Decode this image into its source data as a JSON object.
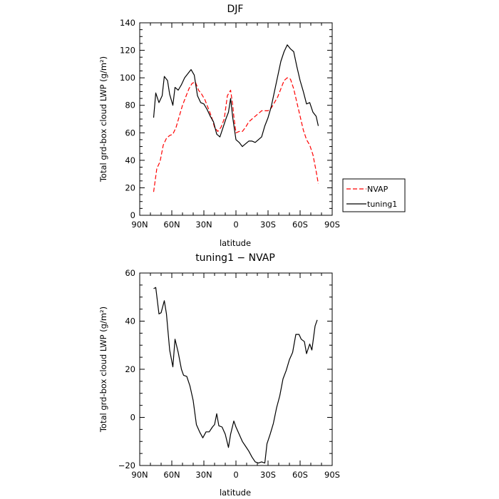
{
  "chart_data": [
    {
      "type": "line",
      "title": "DJF",
      "xlabel": "latitude",
      "ylabel": "Total grd-box cloud LWP (g/m²)",
      "xlim": [
        90,
        -90
      ],
      "ylim": [
        0,
        140
      ],
      "xticks": [
        90,
        60,
        30,
        0,
        -30,
        -60,
        -90
      ],
      "xtick_labels": [
        "90N",
        "60N",
        "30N",
        "0",
        "30S",
        "60S",
        "90S"
      ],
      "yticks": [
        0,
        20,
        40,
        60,
        80,
        100,
        120,
        140
      ],
      "ytick_labels": [
        "0",
        "20",
        "40",
        "60",
        "80",
        "100",
        "120",
        "140"
      ],
      "legend": "outside-right",
      "series": [
        {
          "name": "NVAP",
          "color": "#ff0000",
          "dash": "dashed",
          "points": [
            [
              77,
              17
            ],
            [
              74,
              34
            ],
            [
              71,
              39
            ],
            [
              68,
              51
            ],
            [
              65,
              56
            ],
            [
              62,
              58
            ],
            [
              59,
              59
            ],
            [
              56,
              64
            ],
            [
              53,
              72
            ],
            [
              50,
              80
            ],
            [
              47,
              86
            ],
            [
              44,
              92
            ],
            [
              41,
              96
            ],
            [
              38,
              97
            ],
            [
              35,
              91
            ],
            [
              32,
              88
            ],
            [
              29,
              84
            ],
            [
              26,
              78
            ],
            [
              23,
              72
            ],
            [
              20,
              64
            ],
            [
              17,
              61
            ],
            [
              14,
              64
            ],
            [
              11,
              70
            ],
            [
              8,
              87
            ],
            [
              5,
              91
            ],
            [
              3,
              80
            ],
            [
              2,
              72
            ],
            [
              0,
              60
            ],
            [
              -3,
              61
            ],
            [
              -6,
              61
            ],
            [
              -9,
              64
            ],
            [
              -12,
              68
            ],
            [
              -15,
              70
            ],
            [
              -18,
              72
            ],
            [
              -21,
              74
            ],
            [
              -24,
              76
            ],
            [
              -27,
              76
            ],
            [
              -30,
              76
            ],
            [
              -33,
              78
            ],
            [
              -36,
              82
            ],
            [
              -39,
              86
            ],
            [
              -42,
              92
            ],
            [
              -45,
              98
            ],
            [
              -48,
              100
            ],
            [
              -51,
              99
            ],
            [
              -54,
              92
            ],
            [
              -57,
              82
            ],
            [
              -60,
              72
            ],
            [
              -63,
              62
            ],
            [
              -66,
              55
            ],
            [
              -69,
              51
            ],
            [
              -72,
              44
            ],
            [
              -75,
              32
            ],
            [
              -77,
              23
            ]
          ]
        },
        {
          "name": "tuning1",
          "color": "#000000",
          "dash": "solid",
          "points": [
            [
              77,
              71
            ],
            [
              75,
              89
            ],
            [
              72,
              82
            ],
            [
              69,
              87
            ],
            [
              67,
              101
            ],
            [
              64,
              98
            ],
            [
              62,
              88
            ],
            [
              59,
              80
            ],
            [
              57,
              93
            ],
            [
              54,
              91
            ],
            [
              51,
              95
            ],
            [
              48,
              100
            ],
            [
              45,
              103
            ],
            [
              42,
              106
            ],
            [
              39,
              102
            ],
            [
              36,
              87
            ],
            [
              33,
              82
            ],
            [
              30,
              81
            ],
            [
              27,
              77
            ],
            [
              24,
              72
            ],
            [
              21,
              68
            ],
            [
              18,
              59
            ],
            [
              15,
              57
            ],
            [
              12,
              64
            ],
            [
              9,
              71
            ],
            [
              7,
              75
            ],
            [
              5,
              85
            ],
            [
              3,
              71
            ],
            [
              0,
              55
            ],
            [
              -3,
              53
            ],
            [
              -6,
              50
            ],
            [
              -9,
              52
            ],
            [
              -12,
              54
            ],
            [
              -15,
              54
            ],
            [
              -18,
              53
            ],
            [
              -21,
              55
            ],
            [
              -24,
              57
            ],
            [
              -27,
              65
            ],
            [
              -30,
              71
            ],
            [
              -33,
              79
            ],
            [
              -36,
              90
            ],
            [
              -39,
              101
            ],
            [
              -42,
              112
            ],
            [
              -45,
              119
            ],
            [
              -48,
              124
            ],
            [
              -51,
              121
            ],
            [
              -54,
              119
            ],
            [
              -57,
              108
            ],
            [
              -60,
              98
            ],
            [
              -63,
              90
            ],
            [
              -66,
              81
            ],
            [
              -69,
              82
            ],
            [
              -72,
              75
            ],
            [
              -75,
              72
            ],
            [
              -77,
              65
            ]
          ]
        }
      ]
    },
    {
      "type": "line",
      "title": "tuning1 − NVAP",
      "xlabel": "latitude",
      "ylabel": "Total grd-box cloud LWP (g/m²)",
      "xlim": [
        90,
        -90
      ],
      "ylim": [
        -20,
        60
      ],
      "xticks": [
        90,
        60,
        30,
        0,
        -30,
        -60,
        -90
      ],
      "xtick_labels": [
        "90N",
        "60N",
        "30N",
        "0",
        "30S",
        "60S",
        "90S"
      ],
      "yticks": [
        -20,
        0,
        20,
        40,
        60
      ],
      "ytick_labels": [
        "−20",
        "0",
        "20",
        "40",
        "60"
      ],
      "series": [
        {
          "color": "#000000",
          "dash": "solid",
          "points": [
            [
              77,
              53.5
            ],
            [
              75,
              54
            ],
            [
              72,
              43
            ],
            [
              70,
              43.5
            ],
            [
              67,
              48.5
            ],
            [
              65,
              43
            ],
            [
              62,
              28
            ],
            [
              59,
              21
            ],
            [
              57,
              32.5
            ],
            [
              54,
              27
            ],
            [
              51,
              20
            ],
            [
              49,
              17.5
            ],
            [
              46,
              17
            ],
            [
              43,
              13
            ],
            [
              40,
              7
            ],
            [
              37,
              -3
            ],
            [
              34,
              -6
            ],
            [
              31,
              -8.5
            ],
            [
              28,
              -6
            ],
            [
              25,
              -6
            ],
            [
              22,
              -4
            ],
            [
              20,
              -3
            ],
            [
              18,
              1.5
            ],
            [
              16,
              -3.5
            ],
            [
              13,
              -4
            ],
            [
              10,
              -7
            ],
            [
              7,
              -12.5
            ],
            [
              5,
              -7
            ],
            [
              2,
              -1.5
            ],
            [
              0,
              -4
            ],
            [
              -3,
              -7
            ],
            [
              -6,
              -10
            ],
            [
              -9,
              -12
            ],
            [
              -12,
              -14
            ],
            [
              -15,
              -16.5
            ],
            [
              -18,
              -18.5
            ],
            [
              -21,
              -19
            ],
            [
              -24,
              -18.5
            ],
            [
              -27,
              -19
            ],
            [
              -29,
              -11
            ],
            [
              -32,
              -7
            ],
            [
              -35,
              -2.5
            ],
            [
              -38,
              4
            ],
            [
              -41,
              9
            ],
            [
              -44,
              16
            ],
            [
              -47,
              19.5
            ],
            [
              -50,
              24
            ],
            [
              -53,
              27
            ],
            [
              -56,
              34.5
            ],
            [
              -59,
              34.5
            ],
            [
              -61,
              32.5
            ],
            [
              -64,
              31.5
            ],
            [
              -66,
              26.5
            ],
            [
              -69,
              30.5
            ],
            [
              -71,
              28
            ],
            [
              -74,
              38
            ],
            [
              -76,
              40.5
            ]
          ]
        }
      ]
    }
  ]
}
